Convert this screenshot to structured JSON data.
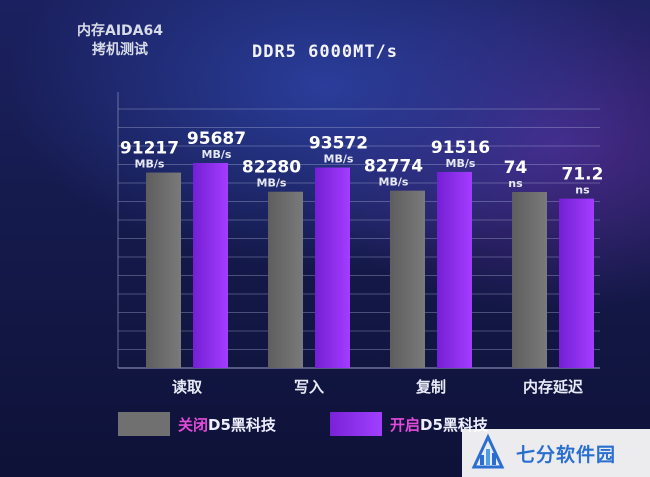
{
  "corner_label": [
    "内存AIDA64",
    "拷机测试"
  ],
  "chart_data": {
    "type": "bar",
    "title": "DDR5 6000MT/s",
    "categories": [
      "读取",
      "写入",
      "复制",
      "内存延迟"
    ],
    "series": [
      {
        "name": "关闭D5黑科技",
        "name_highlight": "关闭",
        "name_rest": "D5黑科技",
        "color": "#707070",
        "values": [
          91217,
          82280,
          82774,
          74
        ],
        "labels": [
          "91217",
          "82280",
          "82774",
          "74"
        ],
        "units": [
          "MB/s",
          "MB/s",
          "MB/s",
          "ns"
        ]
      },
      {
        "name": "开启D5黑科技",
        "name_highlight": "开启",
        "name_rest": "D5黑科技",
        "color": "#8a2be2",
        "values": [
          95687,
          93572,
          91516,
          71.2
        ],
        "labels": [
          "95687",
          "93572",
          "91516",
          "71.2"
        ],
        "units": [
          "MB/s",
          "MB/s",
          "MB/s",
          "ns"
        ]
      }
    ],
    "grid": true,
    "legend_position": "bottom"
  },
  "watermark": {
    "text": "七分软件园"
  }
}
